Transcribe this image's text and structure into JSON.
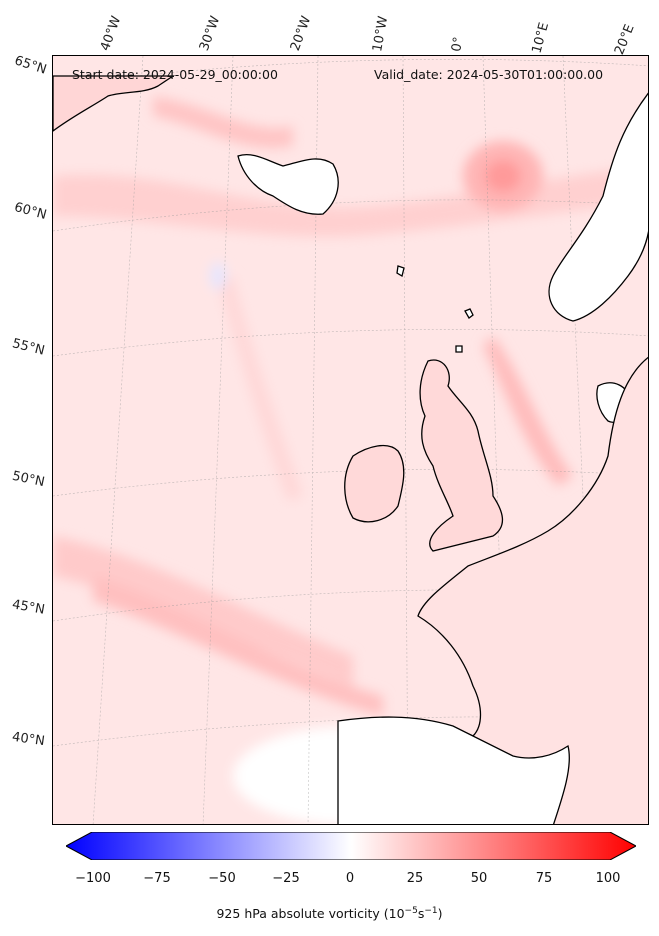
{
  "header": {
    "start_date": "Start date: 2024-05-29_00:00:00",
    "valid_date": "Valid_date: 2024-05-30T01:00:00.00"
  },
  "longitude_labels": [
    "40°W",
    "30°W",
    "20°W",
    "10°W",
    "0°",
    "10°E",
    "20°E"
  ],
  "latitude_labels": [
    "65°N",
    "60°N",
    "55°N",
    "50°N",
    "45°N",
    "40°N"
  ],
  "colorbar": {
    "ticks": [
      "−100",
      "−75",
      "−50",
      "−25",
      "0",
      "25",
      "50",
      "75",
      "100"
    ],
    "label_prefix": "925 hPa absolute vorticity (10",
    "label_exp1": "−5",
    "label_mid": "s",
    "label_exp2": "−1",
    "label_suffix": ")",
    "min": -100,
    "max": 100,
    "colors": {
      "negative": "#0000ff",
      "zero": "#ffffff",
      "positive": "#ff0000"
    }
  },
  "map": {
    "projection": "Lambert conformal",
    "field": "925 hPa absolute vorticity",
    "land_outline_color": "#000000"
  }
}
